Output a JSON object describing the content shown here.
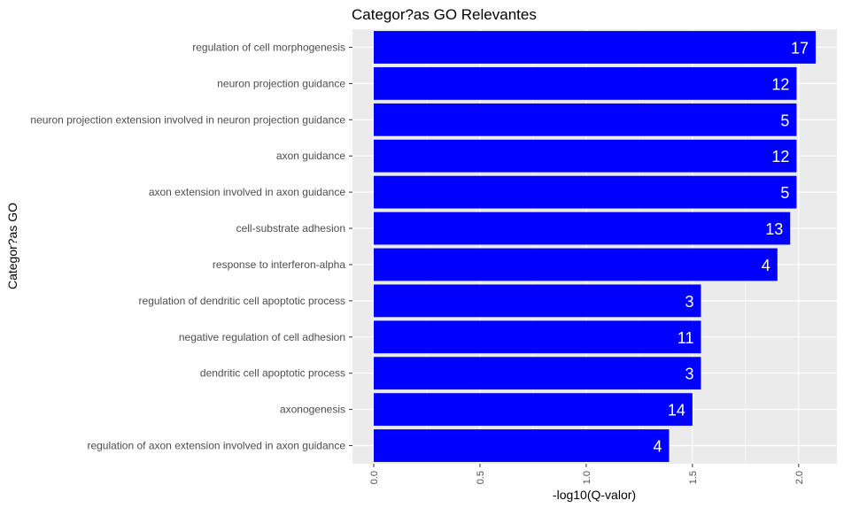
{
  "chart_data": {
    "type": "bar",
    "orientation": "horizontal",
    "title": "Categor?as GO Relevantes",
    "xlabel": "-log10(Q-valor)",
    "ylabel": "Categor?as GO",
    "categories": [
      "regulation of cell morphogenesis",
      "neuron projection guidance",
      "neuron projection extension involved in neuron projection guidance",
      "axon guidance",
      "axon extension involved in axon guidance",
      "cell-substrate adhesion",
      "response to interferon-alpha",
      "regulation of dendritic cell apoptotic process",
      "negative regulation of cell adhesion",
      "dendritic cell apoptotic process",
      "axonogenesis",
      "regulation of axon extension involved in axon guidance"
    ],
    "values": [
      2.08,
      1.99,
      1.99,
      1.99,
      1.99,
      1.96,
      1.9,
      1.54,
      1.54,
      1.54,
      1.5,
      1.39
    ],
    "labels": [
      "17",
      "12",
      "5",
      "12",
      "5",
      "13",
      "4",
      "3",
      "11",
      "3",
      "14",
      "4"
    ],
    "xlim": [
      -0.1,
      2.18
    ],
    "xticks": [
      "0.0",
      "0.5",
      "1.0",
      "1.5",
      "2.0"
    ],
    "xtick_values": [
      0,
      0.5,
      1.0,
      1.5,
      2.0
    ],
    "bar_color": "#0000ff",
    "panel_background": "#ebebeb",
    "grid_color": "#ffffff",
    "grid": true
  }
}
